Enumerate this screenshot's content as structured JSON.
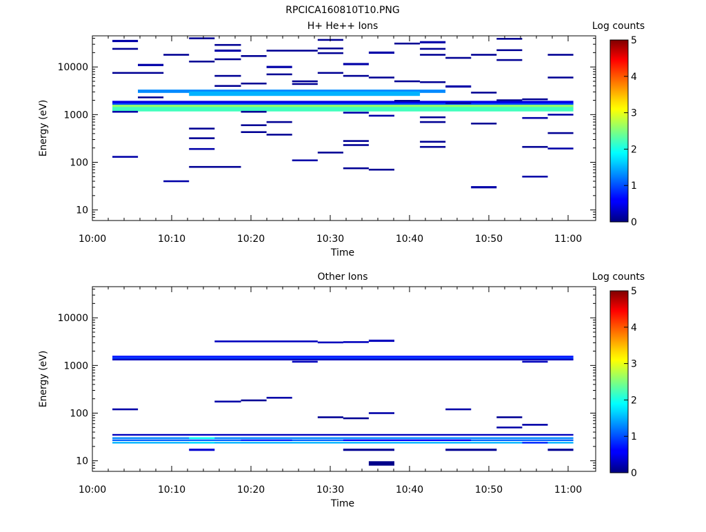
{
  "title": "RPCICA160810T10.PNG",
  "colorbar": {
    "label": "Log counts",
    "min": 0,
    "max": 5,
    "ticks": [
      "0",
      "1",
      "2",
      "3",
      "4",
      "5"
    ]
  },
  "time_ticks": [
    "10:00",
    "10:10",
    "10:20",
    "10:30",
    "10:40",
    "10:50",
    "11:00"
  ],
  "chart_data": [
    {
      "type": "heatmap",
      "title": "H+ He++ Ions",
      "xlabel": "Time",
      "ylabel": "Energy (eV)",
      "x_range_min": [
        0,
        63
      ],
      "y_range_ev": [
        6,
        45000
      ],
      "y_scale": "log",
      "y_ticks": [
        10,
        100,
        1000,
        10000
      ],
      "y_tick_labels": [
        "10",
        "100",
        "1000",
        "10000"
      ],
      "cells": [
        {
          "t0": 2.5,
          "t1": 5.7,
          "e": 35000,
          "v": 0.2,
          "h": 2
        },
        {
          "t0": 2.5,
          "t1": 5.7,
          "e": 24000,
          "v": 0.1
        },
        {
          "t0": 2.5,
          "t1": 8.9,
          "e": 7500,
          "v": 0.1
        },
        {
          "t0": 2.5,
          "t1": 5.7,
          "e": 130,
          "v": 0.2
        },
        {
          "t0": 2.5,
          "t1": 5.7,
          "e": 1150,
          "v": 0.2
        },
        {
          "t0": 5.7,
          "t1": 8.9,
          "e": 11000,
          "v": 0.2,
          "h": 2
        },
        {
          "t0": 5.7,
          "t1": 8.9,
          "e": 2300,
          "v": 0.1
        },
        {
          "t0": 8.9,
          "t1": 12.1,
          "e": 18000,
          "v": 0.1
        },
        {
          "t0": 8.9,
          "t1": 12.1,
          "e": 40,
          "v": 0.2
        },
        {
          "t0": 12.1,
          "t1": 15.3,
          "e": 40000,
          "v": 0.1
        },
        {
          "t0": 12.1,
          "t1": 15.3,
          "e": 13000,
          "v": 0.1
        },
        {
          "t0": 12.1,
          "t1": 15.3,
          "e": 510,
          "v": 0.1
        },
        {
          "t0": 12.1,
          "t1": 15.3,
          "e": 320,
          "v": 0.1
        },
        {
          "t0": 12.1,
          "t1": 15.3,
          "e": 190,
          "v": 0.2
        },
        {
          "t0": 12.1,
          "t1": 18.6,
          "e": 80,
          "v": 0.1
        },
        {
          "t0": 15.3,
          "t1": 18.6,
          "e": 29000,
          "v": 0.1
        },
        {
          "t0": 15.3,
          "t1": 18.6,
          "e": 22000,
          "v": 0.2,
          "h": 2
        },
        {
          "t0": 15.3,
          "t1": 18.6,
          "e": 14500,
          "v": 0.1
        },
        {
          "t0": 15.3,
          "t1": 18.6,
          "e": 6500,
          "v": 0.1
        },
        {
          "t0": 15.3,
          "t1": 18.6,
          "e": 4000,
          "v": 0.1
        },
        {
          "t0": 18.6,
          "t1": 21.8,
          "e": 17000,
          "v": 0.1
        },
        {
          "t0": 18.6,
          "t1": 21.8,
          "e": 4500,
          "v": 0.1
        },
        {
          "t0": 18.6,
          "t1": 21.8,
          "e": 600,
          "v": 0.1
        },
        {
          "t0": 18.6,
          "t1": 21.8,
          "e": 430,
          "v": 0.1
        },
        {
          "t0": 18.6,
          "t1": 21.8,
          "e": 1150,
          "v": 0.1
        },
        {
          "t0": 21.8,
          "t1": 25.0,
          "e": 10000,
          "v": 0.2,
          "h": 2
        },
        {
          "t0": 21.8,
          "t1": 25.0,
          "e": 7000,
          "v": 0.1
        },
        {
          "t0": 21.8,
          "t1": 25.0,
          "e": 700,
          "v": 0.1
        },
        {
          "t0": 21.8,
          "t1": 25.0,
          "e": 380,
          "v": 0.1
        },
        {
          "t0": 21.8,
          "t1": 28.2,
          "e": 22000,
          "v": 0.1
        },
        {
          "t0": 25.0,
          "t1": 28.2,
          "e": 5000,
          "v": 0.1
        },
        {
          "t0": 25.0,
          "t1": 28.2,
          "e": 4400,
          "v": 0.1
        },
        {
          "t0": 25.0,
          "t1": 28.2,
          "e": 110,
          "v": 0.2
        },
        {
          "t0": 28.2,
          "t1": 31.4,
          "e": 37000,
          "v": 0.1
        },
        {
          "t0": 28.2,
          "t1": 31.4,
          "e": 24500,
          "v": 0.1
        },
        {
          "t0": 28.2,
          "t1": 31.4,
          "e": 19500,
          "v": 0.1
        },
        {
          "t0": 28.2,
          "t1": 31.4,
          "e": 7500,
          "v": 0.1
        },
        {
          "t0": 28.2,
          "t1": 31.4,
          "e": 160,
          "v": 0.1
        },
        {
          "t0": 31.4,
          "t1": 34.6,
          "e": 11500,
          "v": 0.2,
          "h": 2
        },
        {
          "t0": 31.4,
          "t1": 34.6,
          "e": 6500,
          "v": 0.1
        },
        {
          "t0": 31.4,
          "t1": 34.6,
          "e": 280,
          "v": 0.1
        },
        {
          "t0": 31.4,
          "t1": 34.6,
          "e": 230,
          "v": 0.1
        },
        {
          "t0": 31.4,
          "t1": 34.6,
          "e": 75,
          "v": 0.1
        },
        {
          "t0": 31.4,
          "t1": 34.6,
          "e": 1100,
          "v": 0.2
        },
        {
          "t0": 34.6,
          "t1": 37.8,
          "e": 20000,
          "v": 0.2,
          "h": 2
        },
        {
          "t0": 34.6,
          "t1": 37.8,
          "e": 6000,
          "v": 0.1
        },
        {
          "t0": 34.6,
          "t1": 37.8,
          "e": 950,
          "v": 0.2
        },
        {
          "t0": 34.6,
          "t1": 37.8,
          "e": 70,
          "v": 0.1
        },
        {
          "t0": 37.8,
          "t1": 41.0,
          "e": 31000,
          "v": 0.1
        },
        {
          "t0": 37.8,
          "t1": 41.0,
          "e": 5000,
          "v": 0.1
        },
        {
          "t0": 37.8,
          "t1": 41.0,
          "e": 1950,
          "v": 0.1
        },
        {
          "t0": 41.0,
          "t1": 44.2,
          "e": 33000,
          "v": 0.2,
          "h": 2
        },
        {
          "t0": 41.0,
          "t1": 44.2,
          "e": 24000,
          "v": 0.1
        },
        {
          "t0": 41.0,
          "t1": 44.2,
          "e": 18000,
          "v": 0.1
        },
        {
          "t0": 41.0,
          "t1": 44.2,
          "e": 4800,
          "v": 0.1
        },
        {
          "t0": 41.0,
          "t1": 44.2,
          "e": 880,
          "v": 0.1
        },
        {
          "t0": 41.0,
          "t1": 44.2,
          "e": 700,
          "v": 0.1
        },
        {
          "t0": 41.0,
          "t1": 44.2,
          "e": 270,
          "v": 0.1
        },
        {
          "t0": 41.0,
          "t1": 44.2,
          "e": 210,
          "v": 0.1
        },
        {
          "t0": 44.2,
          "t1": 47.4,
          "e": 15500,
          "v": 0.1
        },
        {
          "t0": 44.2,
          "t1": 47.4,
          "e": 3900,
          "v": 0.2,
          "h": 2
        },
        {
          "t0": 44.2,
          "t1": 47.4,
          "e": 1750,
          "v": 0.2
        },
        {
          "t0": 47.4,
          "t1": 50.6,
          "e": 18000,
          "v": 0.1
        },
        {
          "t0": 47.4,
          "t1": 50.6,
          "e": 2900,
          "v": 0.1
        },
        {
          "t0": 47.4,
          "t1": 50.6,
          "e": 650,
          "v": 0.1
        },
        {
          "t0": 47.4,
          "t1": 50.6,
          "e": 30,
          "v": 0.2,
          "h": 2
        },
        {
          "t0": 50.6,
          "t1": 53.8,
          "e": 39000,
          "v": 0.1
        },
        {
          "t0": 50.6,
          "t1": 53.8,
          "e": 22500,
          "v": 0.1
        },
        {
          "t0": 50.6,
          "t1": 53.8,
          "e": 14000,
          "v": 0.1
        },
        {
          "t0": 50.6,
          "t1": 53.8,
          "e": 2000,
          "v": 0.1
        },
        {
          "t0": 53.8,
          "t1": 57.0,
          "e": 2100,
          "v": 0.1
        },
        {
          "t0": 53.8,
          "t1": 57.0,
          "e": 850,
          "v": 0.2
        },
        {
          "t0": 53.8,
          "t1": 57.0,
          "e": 210,
          "v": 0.1
        },
        {
          "t0": 53.8,
          "t1": 57.0,
          "e": 50,
          "v": 0.2
        },
        {
          "t0": 57.0,
          "t1": 60.2,
          "e": 18000,
          "v": 0.1
        },
        {
          "t0": 57.0,
          "t1": 60.2,
          "e": 6000,
          "v": 0.1
        },
        {
          "t0": 57.0,
          "t1": 60.2,
          "e": 1000,
          "v": 0.2
        },
        {
          "t0": 57.0,
          "t1": 60.2,
          "e": 410,
          "v": 0.1
        },
        {
          "t0": 57.0,
          "t1": 60.2,
          "e": 195,
          "v": 0.2
        }
      ],
      "bands": [
        {
          "t0": 5.7,
          "t1": 44.2,
          "e": 3100,
          "v": 1.3,
          "h": 3
        },
        {
          "t0": 12.1,
          "t1": 41.0,
          "e": 2750,
          "v": 1.5,
          "h": 4
        },
        {
          "t0": 2.5,
          "t1": 60.2,
          "e": 1800,
          "v": 0.5,
          "h": 3
        },
        {
          "t0": 2.5,
          "t1": 60.2,
          "e": 1600,
          "v": 1.0,
          "h": 3
        },
        {
          "t0": 2.5,
          "t1": 60.2,
          "e": 1450,
          "v": 2.6,
          "h": 4
        },
        {
          "t0": 2.5,
          "t1": 60.2,
          "e": 1300,
          "v": 2.2,
          "h": 4
        }
      ]
    },
    {
      "type": "heatmap",
      "title": "Other Ions",
      "xlabel": "Time",
      "ylabel": "Energy (eV)",
      "x_range_min": [
        0,
        63
      ],
      "y_range_ev": [
        6,
        45000
      ],
      "y_scale": "log",
      "y_ticks": [
        10,
        100,
        1000,
        10000
      ],
      "y_tick_labels": [
        "10",
        "100",
        "1000",
        "10000"
      ],
      "cells": [
        {
          "t0": 2.5,
          "t1": 5.7,
          "e": 120,
          "v": 0.2
        },
        {
          "t0": 15.3,
          "t1": 18.6,
          "e": 175,
          "v": 0.2
        },
        {
          "t0": 18.6,
          "t1": 21.8,
          "e": 185,
          "v": 0.1
        },
        {
          "t0": 21.8,
          "t1": 25.0,
          "e": 210,
          "v": 0.2
        },
        {
          "t0": 28.2,
          "t1": 31.4,
          "e": 82,
          "v": 0.1
        },
        {
          "t0": 31.4,
          "t1": 34.6,
          "e": 78,
          "v": 0.1
        },
        {
          "t0": 34.6,
          "t1": 37.8,
          "e": 100,
          "v": 0.2
        },
        {
          "t0": 44.2,
          "t1": 47.4,
          "e": 120,
          "v": 0.2
        },
        {
          "t0": 50.6,
          "t1": 53.8,
          "e": 82,
          "v": 0.1
        },
        {
          "t0": 50.6,
          "t1": 53.8,
          "e": 50,
          "v": 0.2
        },
        {
          "t0": 53.8,
          "t1": 57.0,
          "e": 57,
          "v": 0.2
        },
        {
          "t0": 15.3,
          "t1": 28.2,
          "e": 3200,
          "v": 0.3
        },
        {
          "t0": 28.2,
          "t1": 31.4,
          "e": 3050,
          "v": 0.3
        },
        {
          "t0": 31.4,
          "t1": 34.6,
          "e": 3100,
          "v": 0.3
        },
        {
          "t0": 34.6,
          "t1": 37.8,
          "e": 3300,
          "v": 0.3,
          "h": 2
        },
        {
          "t0": 25.0,
          "t1": 28.2,
          "e": 1200,
          "v": 0.3
        },
        {
          "t0": 53.8,
          "t1": 57.0,
          "e": 1200,
          "v": 0.3
        },
        {
          "t0": 12.1,
          "t1": 15.3,
          "e": 17,
          "v": 0.4,
          "h": 2
        },
        {
          "t0": 31.4,
          "t1": 37.8,
          "e": 17,
          "v": 0.1,
          "h": 2
        },
        {
          "t0": 44.2,
          "t1": 50.6,
          "e": 17,
          "v": 0.1,
          "h": 2
        },
        {
          "t0": 57.0,
          "t1": 60.2,
          "e": 17,
          "v": 0.1,
          "h": 2
        },
        {
          "t0": 34.6,
          "t1": 37.8,
          "e": 8.8,
          "v": 0.05,
          "h": 4
        }
      ],
      "bands": [
        {
          "t0": 2.5,
          "t1": 60.2,
          "e": 1540,
          "v": 0.7,
          "h": 1.5
        },
        {
          "t0": 2.5,
          "t1": 60.2,
          "e": 1420,
          "v": 0.9,
          "h": 1.5
        },
        {
          "t0": 2.5,
          "t1": 60.2,
          "e": 1330,
          "v": 0.3,
          "h": 1.5
        },
        {
          "t0": 2.5,
          "t1": 60.2,
          "e": 35,
          "v": 0.3,
          "h": 1.5
        },
        {
          "t0": 2.5,
          "t1": 60.2,
          "e": 30,
          "v": 1.3,
          "h": 1.5
        },
        {
          "t0": 2.5,
          "t1": 60.2,
          "e": 27,
          "v": 1.1,
          "h": 1.5
        },
        {
          "t0": 2.5,
          "t1": 60.2,
          "e": 24,
          "v": 1.5,
          "h": 1.5
        },
        {
          "t0": 12.1,
          "t1": 15.3,
          "e": 30,
          "v": 1.9,
          "h": 1.5
        },
        {
          "t0": 12.1,
          "t1": 15.3,
          "e": 24,
          "v": 1.7,
          "h": 1.5
        },
        {
          "t0": 18.6,
          "t1": 25.0,
          "e": 27,
          "v": 0.8,
          "h": 1.5
        },
        {
          "t0": 31.4,
          "t1": 47.4,
          "e": 27,
          "v": 0.6,
          "h": 1.5
        },
        {
          "t0": 53.8,
          "t1": 57.0,
          "e": 24,
          "v": 0.8,
          "h": 1.5
        }
      ]
    }
  ]
}
